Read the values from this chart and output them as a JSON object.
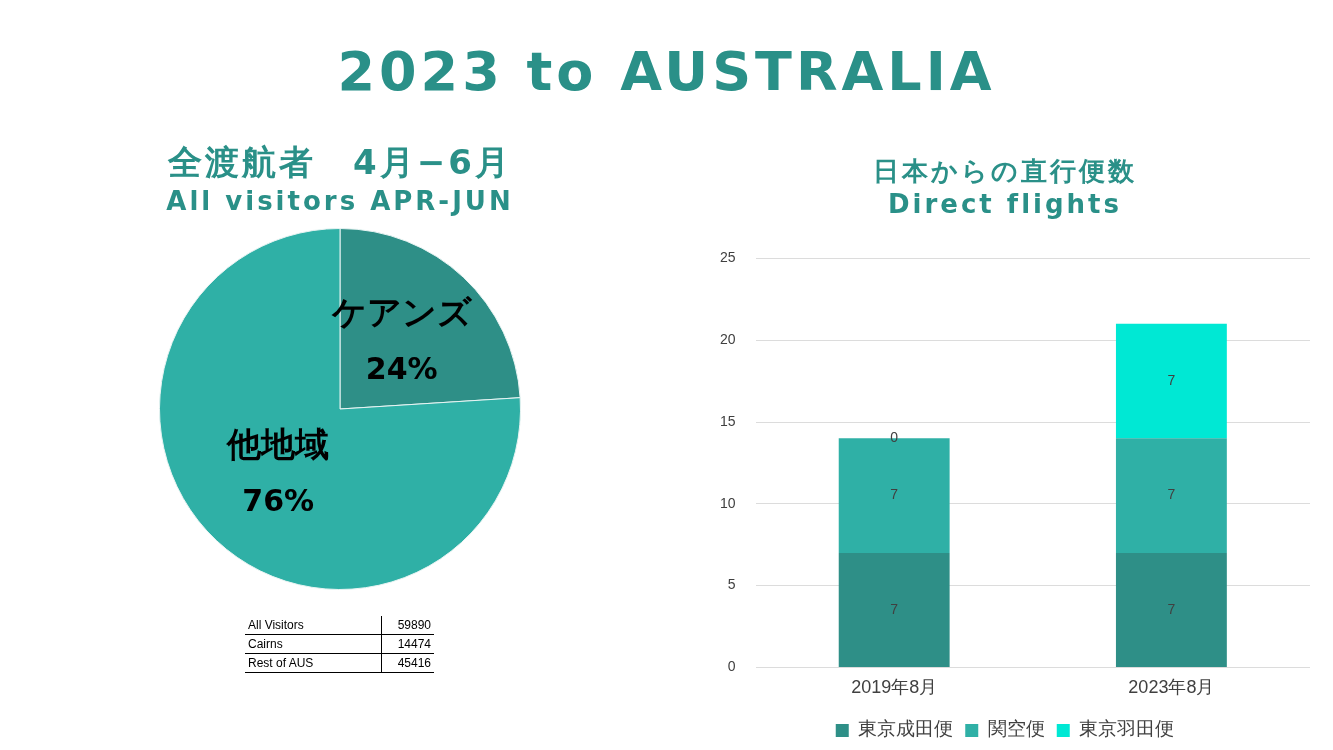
{
  "chart_data": [
    {
      "type": "other",
      "title": "2023 to AUSTRALIA"
    },
    {
      "type": "pie",
      "title": "全渡航者　4月−6月",
      "subtitle": "All visitors APR-JUN",
      "categories": [
        "ケアンズ",
        "他地域"
      ],
      "values": [
        24,
        76
      ],
      "value_labels": [
        "24%",
        "76%"
      ],
      "colors": [
        "#2e8f87",
        "#2fb0a6"
      ],
      "annotations": [
        {
          "text": "All Visitors"
        },
        {
          "text": "59890"
        },
        {
          "text": "Cairns"
        },
        {
          "text": "14474"
        },
        {
          "text": "Rest of AUS"
        },
        {
          "text": "45416"
        }
      ]
    },
    {
      "type": "bar",
      "title": "日本からの直行便数",
      "subtitle": "Direct flights",
      "categories": [
        "2019年8月",
        "2023年8月"
      ],
      "stacked": true,
      "data_labels": true,
      "ylim": [
        0,
        25
      ],
      "yticks": [
        0,
        5,
        10,
        15,
        20,
        25
      ],
      "grid": "y",
      "legend": "bottom",
      "series": [
        {
          "name": "東京成田便",
          "color": "#2e8f87",
          "values": [
            7,
            7
          ]
        },
        {
          "name": "関空便",
          "color": "#2fb0a6",
          "values": [
            7,
            7
          ]
        },
        {
          "name": "東京羽田便",
          "color": "#00e8d4",
          "values": [
            0,
            7
          ]
        }
      ]
    }
  ]
}
